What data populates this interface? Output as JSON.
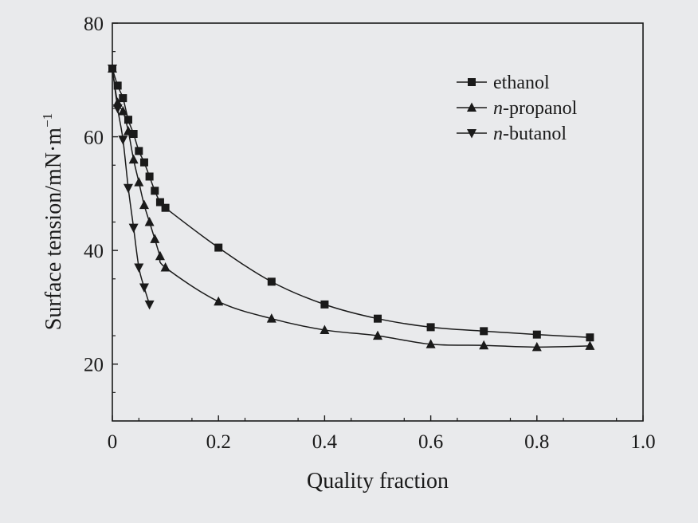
{
  "chart_data": {
    "type": "line",
    "xlabel": "Quality fraction",
    "ylabel": "Surface tension/mN·m",
    "ylabel_superscript": "−1",
    "xlim": [
      0,
      1.0
    ],
    "ylim": [
      10,
      80
    ],
    "xticks": [
      {
        "value": 0,
        "label": "0"
      },
      {
        "value": 0.2,
        "label": "0.2"
      },
      {
        "value": 0.4,
        "label": "0.4"
      },
      {
        "value": 0.6,
        "label": "0.6"
      },
      {
        "value": 0.8,
        "label": "0.8"
      },
      {
        "value": 1.0,
        "label": "1.0"
      }
    ],
    "yticks": [
      {
        "value": 20,
        "label": "20"
      },
      {
        "value": 40,
        "label": "40"
      },
      {
        "value": 60,
        "label": "60"
      },
      {
        "value": 80,
        "label": "80"
      }
    ],
    "grid": false,
    "legend_position": "top-right",
    "series": [
      {
        "name": "ethanol",
        "name_prefix": "",
        "name_suffix": "ethanol",
        "marker": "square",
        "x": [
          0,
          0.01,
          0.02,
          0.03,
          0.04,
          0.05,
          0.06,
          0.07,
          0.08,
          0.09,
          0.1,
          0.2,
          0.3,
          0.4,
          0.5,
          0.6,
          0.7,
          0.8,
          0.9
        ],
        "y": [
          72.0,
          69.0,
          66.8,
          63.0,
          60.5,
          57.5,
          55.5,
          53.0,
          50.5,
          48.5,
          47.5,
          40.5,
          34.5,
          30.5,
          28.0,
          26.5,
          25.8,
          25.2,
          24.7
        ]
      },
      {
        "name": "n-propanol",
        "name_prefix": "n",
        "name_suffix": "-propanol",
        "marker": "triangle-up",
        "x": [
          0,
          0.01,
          0.02,
          0.03,
          0.04,
          0.05,
          0.06,
          0.07,
          0.08,
          0.09,
          0.1,
          0.2,
          0.3,
          0.4,
          0.5,
          0.6,
          0.7,
          0.8,
          0.9
        ],
        "y": [
          72.0,
          66.0,
          64.5,
          61.0,
          56.0,
          52.0,
          48.0,
          45.0,
          42.0,
          39.0,
          37.0,
          31.0,
          28.0,
          26.0,
          25.0,
          23.5,
          23.3,
          23.0,
          23.2
        ]
      },
      {
        "name": "n-butanol",
        "name_prefix": "n",
        "name_suffix": "-butanol",
        "marker": "triangle-down",
        "x": [
          0,
          0.01,
          0.02,
          0.03,
          0.04,
          0.05,
          0.06,
          0.07
        ],
        "y": [
          72.0,
          65.0,
          59.5,
          51.0,
          44.0,
          37.0,
          33.5,
          30.5
        ]
      }
    ]
  }
}
